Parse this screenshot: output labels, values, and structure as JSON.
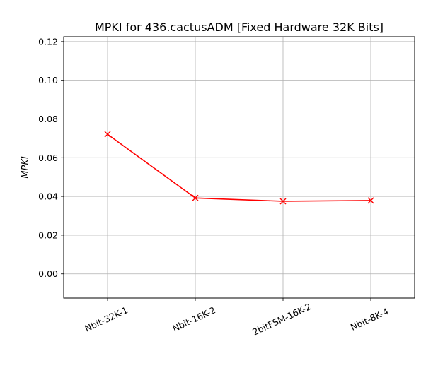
{
  "chart_data": {
    "type": "line",
    "title": "MPKI for 436.cactusADM [Fixed Hardware 32K Bits]",
    "xlabel": "",
    "ylabel": "MPKI",
    "categories": [
      "Nbit-32K-1",
      "Nbit-16K-2",
      "2bitFSM-16K-2",
      "Nbit-8K-4"
    ],
    "series": [
      {
        "values": [
          0.0721,
          0.0392,
          0.0375,
          0.0379
        ],
        "color": "#ff0000",
        "marker": "x"
      }
    ],
    "ylim": [
      -0.0125,
      0.1225
    ],
    "yticks": [
      0.0,
      0.02,
      0.04,
      0.06,
      0.08,
      0.1,
      0.12
    ],
    "ytick_labels": [
      "0.00",
      "0.02",
      "0.04",
      "0.06",
      "0.08",
      "0.10",
      "0.12"
    ],
    "grid": true,
    "xtick_rotation_deg": -25
  }
}
